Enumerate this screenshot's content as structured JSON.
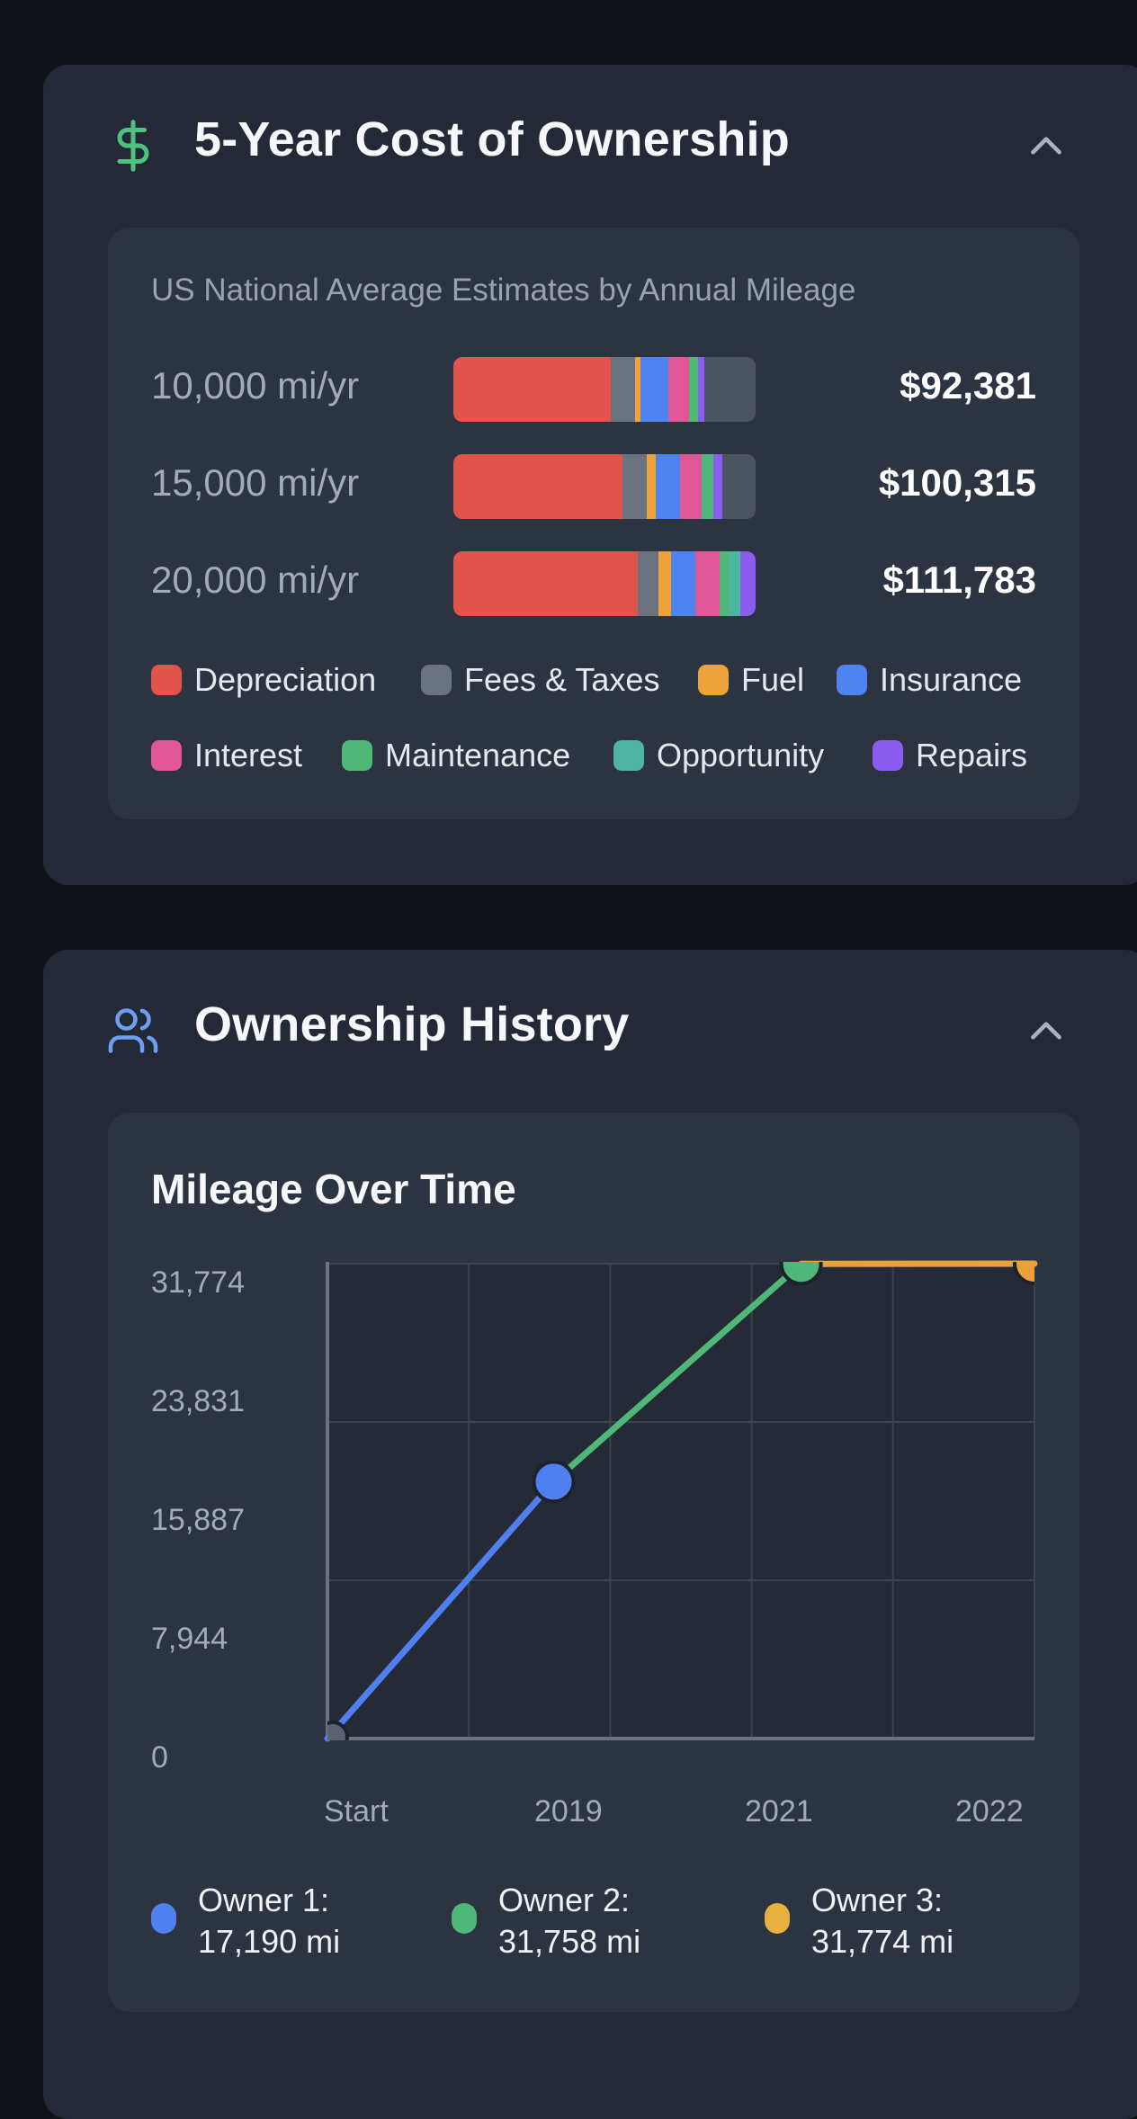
{
  "cost": {
    "title": "5-Year Cost of Ownership",
    "subtitle": "US National Average Estimates by Annual Mileage",
    "rows": [
      {
        "label": "10,000 mi/yr",
        "total": "$92,381",
        "segments": [
          0.52,
          0.08,
          0.02,
          0.09,
          0.07,
          0.03,
          0.0,
          0.02,
          0.17
        ]
      },
      {
        "label": "15,000 mi/yr",
        "total": "$100,315",
        "segments": [
          0.56,
          0.08,
          0.03,
          0.08,
          0.07,
          0.04,
          0.0,
          0.03,
          0.11
        ]
      },
      {
        "label": "20,000 mi/yr",
        "total": "$111,783",
        "segments": [
          0.61,
          0.07,
          0.04,
          0.08,
          0.08,
          0.03,
          0.04,
          0.05,
          0.0
        ]
      }
    ],
    "legend": [
      {
        "label": "Depreciation",
        "color": "#e0544c"
      },
      {
        "label": "Fees & Taxes",
        "color": "#6b7280"
      },
      {
        "label": "Fuel",
        "color": "#eea23a"
      },
      {
        "label": "Insurance",
        "color": "#4f84f0"
      },
      {
        "label": "Interest",
        "color": "#e05797"
      },
      {
        "label": "Maintenance",
        "color": "#4fb879"
      },
      {
        "label": "Opportunity",
        "color": "#4fb5a3"
      },
      {
        "label": "Repairs",
        "color": "#8b5cf0"
      }
    ],
    "remainder_color": "#4c5361"
  },
  "ownership": {
    "title": "Ownership History",
    "chart_title": "Mileage Over Time"
  },
  "chart_data": {
    "type": "line",
    "title": "Mileage Over Time",
    "categories": [
      "Start",
      "2019",
      "2021",
      "2022"
    ],
    "y_ticks": [
      "31,774",
      "23,831",
      "15,887",
      "7,944",
      "0"
    ],
    "ylim": [
      0,
      31774
    ],
    "series": [
      {
        "name": "Owner 1",
        "color": "#4f7ff0",
        "points": [
          [
            0,
            0
          ],
          [
            1.6,
            17190
          ]
        ]
      },
      {
        "name": "Owner 2",
        "color": "#4fb879",
        "points": [
          [
            1.6,
            17190
          ],
          [
            3.35,
            31758
          ]
        ]
      },
      {
        "name": "Owner 3",
        "color": "#eaa13a",
        "points": [
          [
            3.35,
            31758
          ],
          [
            5.0,
            31774
          ]
        ]
      }
    ],
    "x_positions": [
      0,
      1.6,
      3.35,
      5.0
    ],
    "legend": [
      {
        "name": "Owner 1:",
        "value": "17,190 mi",
        "color": "#4f7ff0"
      },
      {
        "name": "Owner 2:",
        "value": "31,758 mi",
        "color": "#4fb879"
      },
      {
        "name": "Owner 3:",
        "value": "31,774 mi",
        "color": "#e6b13f"
      }
    ]
  }
}
